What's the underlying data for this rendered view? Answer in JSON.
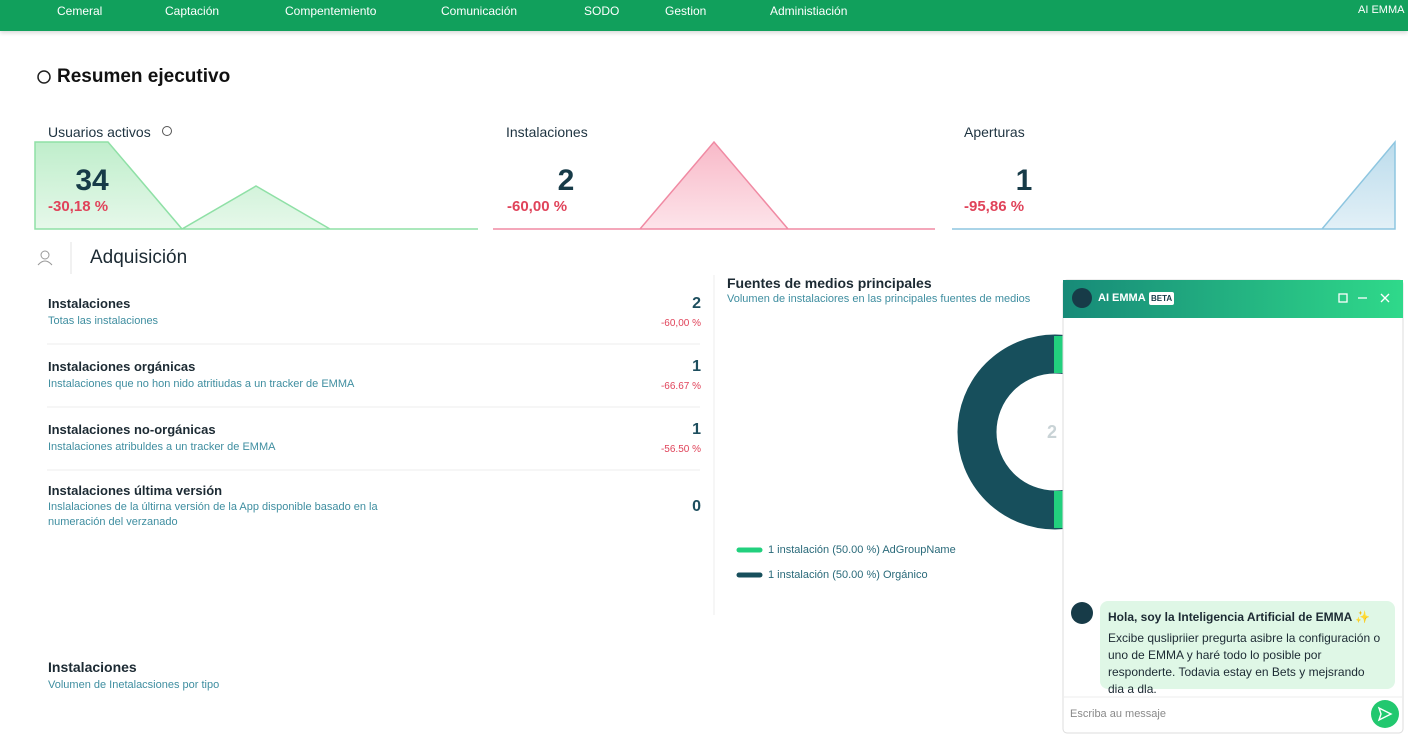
{
  "nav": {
    "items": [
      "Cemeral",
      "Captación",
      "Compentemiento",
      "Comunicación",
      "SODO",
      "Gestion",
      "Administiación"
    ],
    "ai_button": "AI EMMA"
  },
  "header": {
    "title": "Resumen ejecutivo"
  },
  "kpis": [
    {
      "label": "Usuarios activos",
      "value": 34,
      "change": "-30,18 %"
    },
    {
      "label": "Instalaciones",
      "value": 2,
      "change": "-60,00 %"
    },
    {
      "label": "Aperturas",
      "value": 1,
      "change": "-95,86 %"
    }
  ],
  "section": {
    "title": "Adquisición"
  },
  "metrics": [
    {
      "title": "Instalaciones",
      "subtitle": "Totas las instalaciones",
      "value": 2,
      "change": "-60,00 %"
    },
    {
      "title": "Instalaciones orgánicas",
      "subtitle": "Instalaciones que no hon nido atritiudas a un tracker de EMMA",
      "value": 1,
      "change": "-66.67 %"
    },
    {
      "title": "Instalaciones no-orgánicas",
      "subtitle": "Instalaciones atribuldes a un tracker de EMMA",
      "value": 1,
      "change": "-56.50 %"
    },
    {
      "title": "Instalaciones última versión",
      "subtitle": "Inslalaciones de la últirna versión de la App disponible basado en la numeración del verzanado",
      "value": 0
    }
  ],
  "sources": {
    "title": "Fuentes de medios principales",
    "subtitle": "Volumen de instalaciores en las principales fuentes de medios",
    "center": 2,
    "legend": [
      "1 instalación (50.00 %) AdGroupName",
      "1 instalación (50.00 %) Orgánico"
    ]
  },
  "installations": {
    "title": "Instalaciones",
    "subtitle": "Volumen de Inetalacsiones por tipo"
  },
  "chat": {
    "title": "AI EMMA",
    "badge": "BETA",
    "greeting": "Hola, soy la Inteligencia Artificial de EMMA ✨",
    "message": "Excibe quslipriier pregurta asibre la configuración o uno de EMMA y haré todo lo posible por responderte. Todavia estay en Bets y mejsrando dia a dla.",
    "placeholder": "Escriba au messaje"
  }
}
